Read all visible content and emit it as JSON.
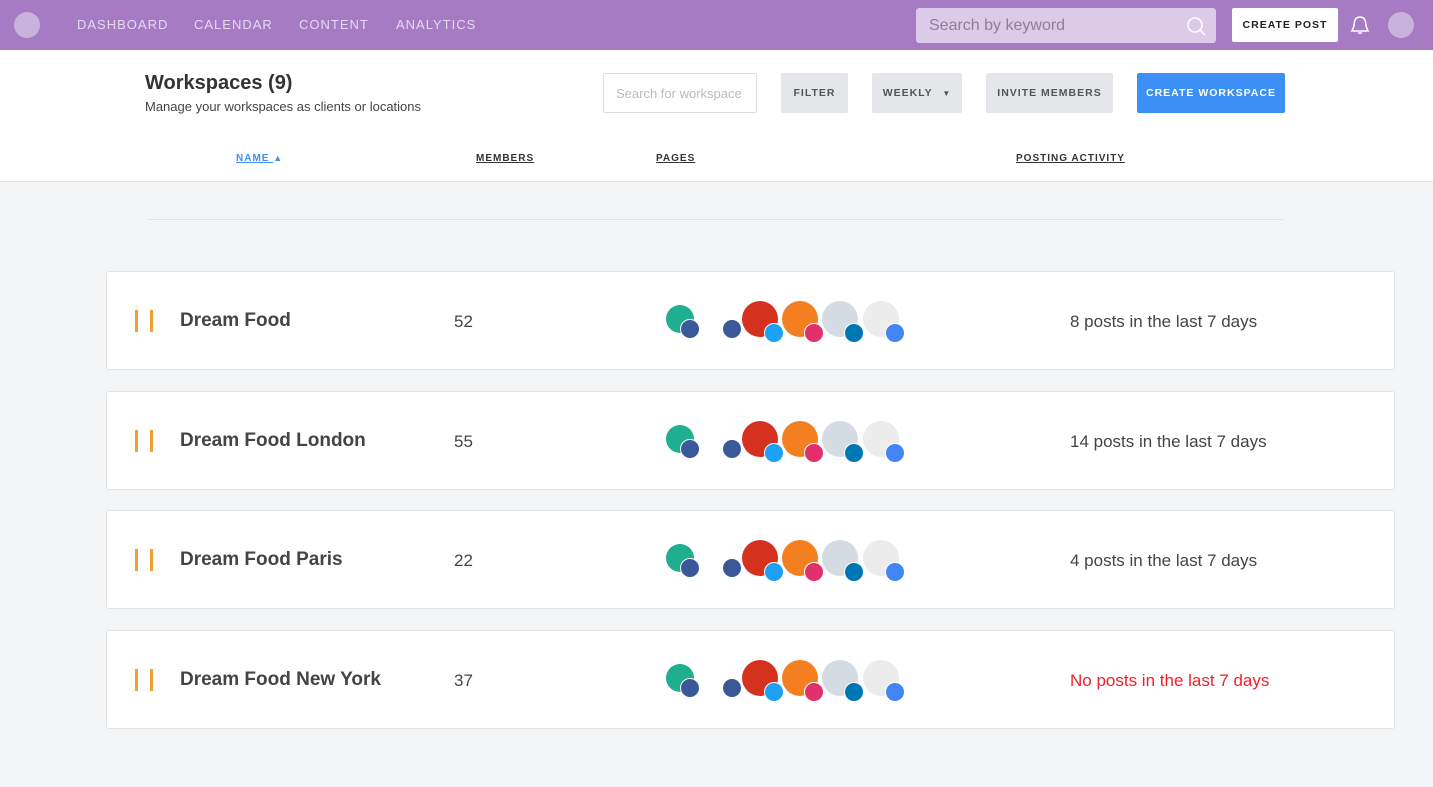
{
  "nav": {
    "items": [
      "DASHBOARD",
      "CALENDAR",
      "CONTENT",
      "ANALYTICS"
    ],
    "search_placeholder": "Search by keyword",
    "create_post": "CREATE POST"
  },
  "header": {
    "title": "Workspaces (9)",
    "subtitle": "Manage your workspaces as clients or locations",
    "search_placeholder": "Search for workspace",
    "filter": "FILTER",
    "period": "WEEKLY",
    "invite": "INVITE MEMBERS",
    "create": "CREATE WORKSPACE"
  },
  "table": {
    "columns": [
      "NAME",
      "MEMBERS",
      "PAGES",
      "POSTING ACTIVITY"
    ],
    "rows": [
      {
        "name": "Dream Food",
        "members": 52,
        "activity": "8 posts in the last 7 days"
      },
      {
        "name": "Dream Food London",
        "members": 55,
        "activity": "14 posts in the last 7 days"
      },
      {
        "name": "Dream Food Paris",
        "members": 22,
        "activity": "4 posts in the last 7 days"
      },
      {
        "name": "Dream Food New York",
        "members": 37,
        "activity": "No posts in the last 7 days"
      }
    ]
  }
}
